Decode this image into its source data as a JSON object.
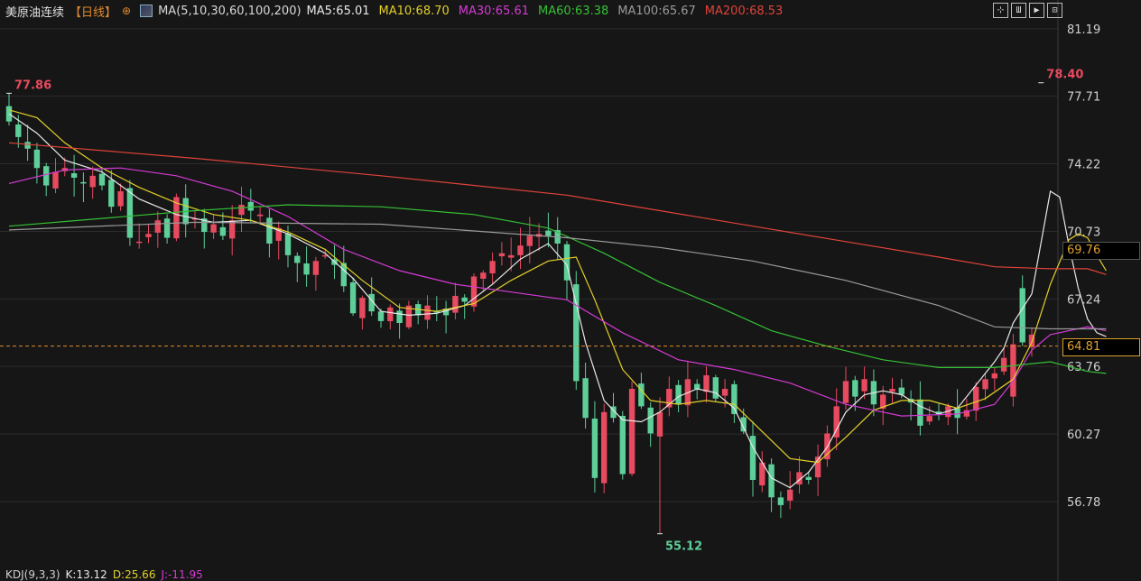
{
  "header": {
    "title": "美原油连续",
    "period": "【日线】",
    "add_symbol": "⊕",
    "ma_set": "MA(5,10,30,60,100,200)",
    "ma_values": [
      {
        "label": "MA5:65.01",
        "color": "#e8e8e8"
      },
      {
        "label": "MA10:68.70",
        "color": "#e3d02a"
      },
      {
        "label": "MA30:65.61",
        "color": "#d43ad4"
      },
      {
        "label": "MA60:63.38",
        "color": "#35c035"
      },
      {
        "label": "MA100:65.67",
        "color": "#9a9a9a"
      },
      {
        "label": "MA200:68.53",
        "color": "#e0433a"
      }
    ]
  },
  "toolbar": [
    "crosshair-icon",
    "bar-style-icon",
    "play-icon",
    "fullscreen-icon"
  ],
  "toolbar_glyphs": [
    "⊹",
    "Ш",
    "▶",
    "⊡"
  ],
  "price_badges": [
    {
      "value": "69.76",
      "price": 69.76,
      "bg": "#000000",
      "fg": "#e0a030",
      "border": "#555555"
    },
    {
      "value": "64.81",
      "price": 64.81,
      "bg": "#000000",
      "fg": "#e0a030",
      "border": "#e0a030"
    }
  ],
  "kdj": {
    "label": "KDJ(9,3,3)",
    "k": "K:13.12",
    "d": "D:25.66",
    "j": "J:-11.95"
  },
  "colors": {
    "up": "#e84a5f",
    "down": "#5fcf9a",
    "grid": "#2c2c2c",
    "axis_text": "#d0d0d0",
    "dash_line": "#e08a2c"
  },
  "chart_data": {
    "type": "candlestick",
    "y_ticks": [
      81.19,
      77.71,
      74.22,
      70.73,
      67.24,
      63.76,
      60.27,
      56.78
    ],
    "y_range": [
      53.8,
      82.3
    ],
    "current_price": 64.81,
    "annotations": [
      {
        "text": "77.86",
        "index": 0,
        "price": 77.86,
        "color": "#e84a5f"
      },
      {
        "text": "78.40",
        "index": 111,
        "price": 78.4,
        "color": "#e84a5f"
      },
      {
        "text": "55.12",
        "index": 70,
        "price": 55.12,
        "color": "#5fcf9a"
      }
    ],
    "closes": [
      76.4,
      75.6,
      75.0,
      74.0,
      73.1,
      73.8,
      74.0,
      73.5,
      73.2,
      73.6,
      73.1,
      72.0,
      72.8,
      70.4,
      70.2,
      70.6,
      71.3,
      70.4,
      72.5,
      71.1,
      71.4,
      70.7,
      71.1,
      70.5,
      71.3,
      72.1,
      71.8,
      71.6,
      70.1,
      70.9,
      69.5,
      69.1,
      68.5,
      69.2,
      69.5,
      69.0,
      67.9,
      66.5,
      67.3,
      66.6,
      66.1,
      66.8,
      66.0,
      66.9,
      66.4,
      66.9,
      66.6,
      66.4,
      67.4,
      67.1,
      68.4,
      68.6,
      69.2,
      69.6,
      69.5,
      70.0,
      70.5,
      70.6,
      70.5,
      70.1,
      68.2,
      63.0,
      61.1,
      58.0,
      61.4,
      61.1,
      58.2,
      62.6,
      61.7,
      60.3,
      61.4,
      62.6,
      61.8,
      63.1,
      62.6,
      63.3,
      62.1,
      62.6,
      61.3,
      60.4,
      57.9,
      58.8,
      57.0,
      56.6,
      57.4,
      58.3,
      57.9,
      59.1,
      60.3,
      61.7,
      63.0,
      62.2,
      63.1,
      61.8,
      62.3,
      62.6,
      62.3,
      61.9,
      60.7,
      61.2,
      61.3,
      61.7,
      61.1,
      61.5,
      62.7,
      63.1,
      63.4,
      64.2,
      64.9,
      65.0,
      65.4
    ],
    "ma_series": {
      "ma5": "#e8e8e8",
      "ma10": "#e3d02a",
      "ma30": "#d43ad4",
      "ma60": "#35c035",
      "ma100": "#9a9a9a",
      "ma200": "#e0433a"
    },
    "ma_paths": {
      "ma5": [
        [
          0,
          76.8
        ],
        [
          3,
          75.8
        ],
        [
          6,
          74.4
        ],
        [
          10,
          73.8
        ],
        [
          14,
          72.4
        ],
        [
          18,
          71.6
        ],
        [
          22,
          71.2
        ],
        [
          26,
          71.3
        ],
        [
          30,
          70.6
        ],
        [
          34,
          69.6
        ],
        [
          37,
          68.3
        ],
        [
          40,
          66.6
        ],
        [
          43,
          66.4
        ],
        [
          46,
          66.5
        ],
        [
          49,
          66.9
        ],
        [
          52,
          68.0
        ],
        [
          55,
          69.3
        ],
        [
          58,
          70.1
        ],
        [
          60,
          69.0
        ],
        [
          62,
          65.0
        ],
        [
          64,
          62.0
        ],
        [
          66,
          61.0
        ],
        [
          68,
          60.9
        ],
        [
          70,
          61.4
        ],
        [
          72,
          62.2
        ],
        [
          74,
          62.6
        ],
        [
          76,
          62.4
        ],
        [
          78,
          61.6
        ],
        [
          80,
          59.6
        ],
        [
          82,
          58.0
        ],
        [
          84,
          57.5
        ],
        [
          86,
          58.3
        ],
        [
          88,
          59.6
        ],
        [
          90,
          61.4
        ],
        [
          92,
          62.3
        ],
        [
          94,
          62.5
        ],
        [
          96,
          62.3
        ],
        [
          98,
          61.7
        ],
        [
          100,
          61.3
        ],
        [
          102,
          61.6
        ],
        [
          104,
          62.8
        ],
        [
          106,
          64.0
        ],
        [
          107,
          64.7
        ],
        [
          108,
          66.0
        ],
        [
          110,
          67.5
        ],
        [
          112,
          72.8
        ],
        [
          113,
          72.5
        ],
        [
          114,
          70.0
        ],
        [
          115,
          67.8
        ],
        [
          116,
          66.2
        ],
        [
          117,
          65.5
        ],
        [
          118,
          65.3
        ]
      ],
      "ma10": [
        [
          0,
          77.0
        ],
        [
          3,
          76.6
        ],
        [
          6,
          75.3
        ],
        [
          10,
          74.0
        ],
        [
          14,
          73.0
        ],
        [
          18,
          72.2
        ],
        [
          22,
          71.6
        ],
        [
          26,
          71.3
        ],
        [
          30,
          70.7
        ],
        [
          34,
          69.8
        ],
        [
          38,
          68.2
        ],
        [
          42,
          66.8
        ],
        [
          46,
          66.6
        ],
        [
          50,
          67.0
        ],
        [
          54,
          68.2
        ],
        [
          58,
          69.2
        ],
        [
          61,
          69.4
        ],
        [
          63,
          67.2
        ],
        [
          66,
          63.6
        ],
        [
          69,
          62.0
        ],
        [
          72,
          61.8
        ],
        [
          75,
          62.0
        ],
        [
          78,
          61.8
        ],
        [
          81,
          60.4
        ],
        [
          84,
          59.0
        ],
        [
          87,
          58.8
        ],
        [
          90,
          60.1
        ],
        [
          93,
          61.5
        ],
        [
          96,
          62.0
        ],
        [
          99,
          62.0
        ],
        [
          102,
          61.6
        ],
        [
          105,
          62.1
        ],
        [
          108,
          63.1
        ],
        [
          110,
          65.0
        ],
        [
          112,
          68.0
        ],
        [
          114,
          70.3
        ],
        [
          115,
          70.6
        ],
        [
          116,
          70.4
        ],
        [
          117,
          69.5
        ],
        [
          118,
          68.7
        ]
      ],
      "ma30": [
        [
          0,
          73.2
        ],
        [
          6,
          73.9
        ],
        [
          12,
          74.0
        ],
        [
          18,
          73.6
        ],
        [
          24,
          72.8
        ],
        [
          30,
          71.5
        ],
        [
          36,
          69.8
        ],
        [
          42,
          68.7
        ],
        [
          48,
          68.0
        ],
        [
          54,
          67.6
        ],
        [
          60,
          67.2
        ],
        [
          66,
          65.5
        ],
        [
          72,
          64.1
        ],
        [
          78,
          63.6
        ],
        [
          84,
          62.9
        ],
        [
          90,
          61.8
        ],
        [
          96,
          61.2
        ],
        [
          102,
          61.3
        ],
        [
          106,
          61.8
        ],
        [
          108,
          63.0
        ],
        [
          110,
          64.6
        ],
        [
          112,
          65.4
        ],
        [
          114,
          65.6
        ],
        [
          116,
          65.8
        ],
        [
          118,
          65.6
        ]
      ],
      "ma60": [
        [
          0,
          71.0
        ],
        [
          10,
          71.4
        ],
        [
          20,
          71.8
        ],
        [
          30,
          72.1
        ],
        [
          40,
          72.0
        ],
        [
          50,
          71.6
        ],
        [
          58,
          70.9
        ],
        [
          64,
          69.6
        ],
        [
          70,
          68.1
        ],
        [
          76,
          66.9
        ],
        [
          82,
          65.6
        ],
        [
          88,
          64.8
        ],
        [
          94,
          64.1
        ],
        [
          100,
          63.7
        ],
        [
          106,
          63.7
        ],
        [
          112,
          64.0
        ],
        [
          116,
          63.5
        ],
        [
          118,
          63.4
        ]
      ],
      "ma100": [
        [
          0,
          70.8
        ],
        [
          20,
          71.2
        ],
        [
          40,
          71.1
        ],
        [
          60,
          70.4
        ],
        [
          70,
          69.9
        ],
        [
          80,
          69.2
        ],
        [
          90,
          68.2
        ],
        [
          100,
          66.9
        ],
        [
          106,
          65.8
        ],
        [
          112,
          65.7
        ],
        [
          116,
          65.7
        ],
        [
          118,
          65.7
        ]
      ],
      "ma200": [
        [
          0,
          75.3
        ],
        [
          20,
          74.5
        ],
        [
          40,
          73.6
        ],
        [
          60,
          72.6
        ],
        [
          70,
          71.8
        ],
        [
          80,
          71.0
        ],
        [
          90,
          70.2
        ],
        [
          100,
          69.4
        ],
        [
          106,
          68.9
        ],
        [
          112,
          68.8
        ],
        [
          116,
          68.8
        ],
        [
          118,
          68.5
        ]
      ]
    }
  }
}
